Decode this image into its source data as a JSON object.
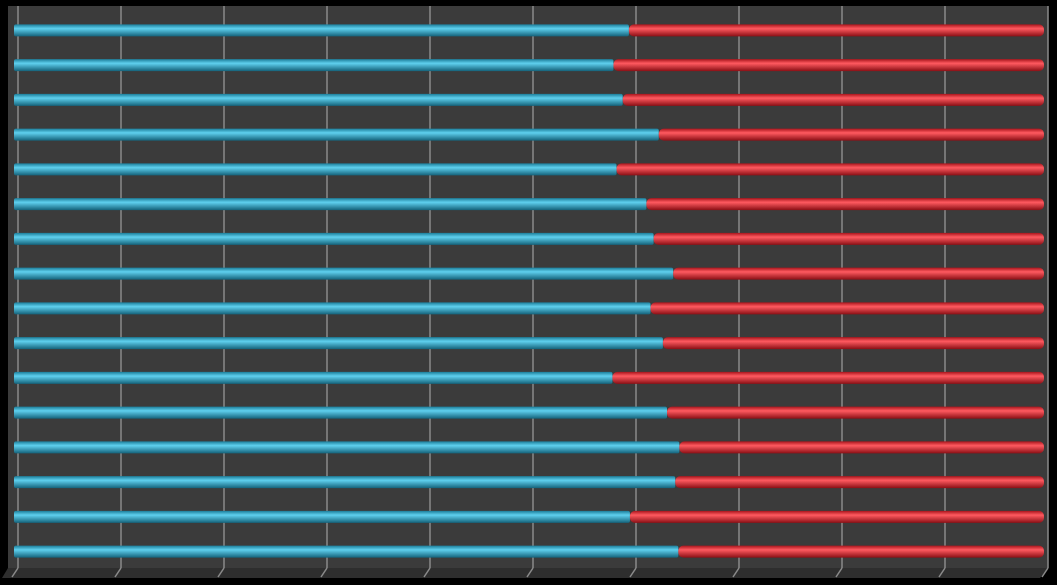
{
  "chart_data": {
    "type": "stacked_hbar_100",
    "categories": [
      null,
      null,
      null,
      null,
      null,
      null,
      null,
      null,
      null,
      null,
      null,
      null,
      null,
      null,
      null,
      null
    ],
    "series": [
      {
        "color": "#29a8cc",
        "values": [
          59.7,
          58.2,
          59.1,
          62.6,
          58.5,
          61.4,
          62.1,
          64.0,
          61.8,
          63.0,
          58.1,
          63.4,
          64.6,
          64.2,
          59.8,
          64.5
        ]
      },
      {
        "color": "#e3202a",
        "values": [
          40.3,
          41.8,
          40.9,
          37.4,
          41.5,
          38.6,
          37.9,
          36.0,
          38.2,
          37.0,
          41.9,
          36.6,
          35.4,
          35.8,
          40.2,
          35.5
        ]
      }
    ],
    "xlim": [
      0,
      100
    ],
    "xticks": [
      0,
      10,
      20,
      30,
      40,
      50,
      60,
      70,
      80,
      90,
      100
    ],
    "grid": true
  }
}
